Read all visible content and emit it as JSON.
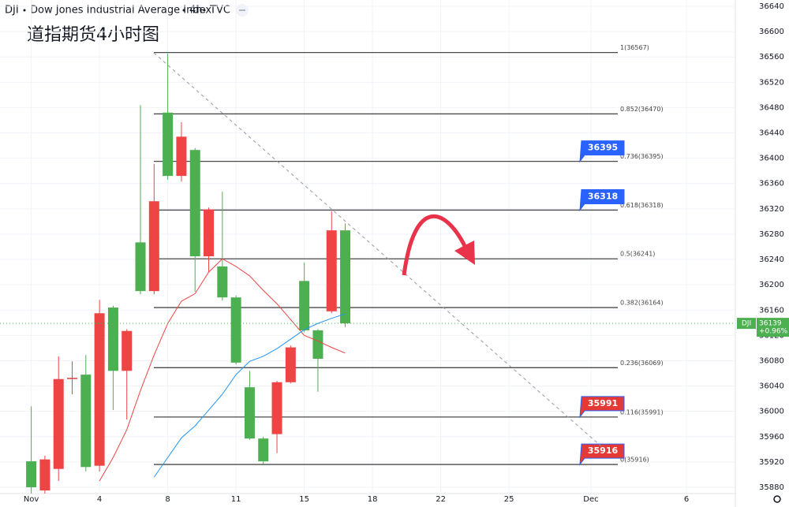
{
  "header": {
    "symbol": "DJI",
    "name": "Dow Jones Industrial Average Index",
    "interval": "4h",
    "source": "TVC"
  },
  "chart_data": {
    "type": "candlestick",
    "title": "道指期货4小时图",
    "x": [
      0,
      1,
      2,
      3,
      4,
      5,
      6,
      7,
      8,
      9,
      10,
      11,
      12,
      13,
      14,
      15,
      16,
      17,
      18,
      19,
      20,
      21,
      22,
      23
    ],
    "open": [
      35921,
      35875,
      35909,
      36051,
      36058,
      35914,
      36164,
      36064,
      36267,
      36190,
      36472,
      36372,
      36413,
      36245,
      36229,
      36180,
      36038,
      35957,
      35964,
      36046,
      36206,
      36128,
      36158,
      36286
    ],
    "high": [
      36008,
      35930,
      36087,
      36079,
      36089,
      36176,
      36167,
      36130,
      36484,
      36391,
      36565,
      36457,
      36416,
      36322,
      36347,
      36183,
      36064,
      35960,
      36048,
      36104,
      36235,
      36130,
      36316,
      36297
    ],
    "low": [
      35870,
      35870,
      35890,
      36027,
      35905,
      35905,
      36002,
      35987,
      36185,
      36185,
      36366,
      36363,
      36189,
      36220,
      36175,
      36074,
      35955,
      35917,
      35934,
      36044,
      36125,
      36031,
      36155,
      36133
    ],
    "close": [
      35880,
      35924,
      36051,
      36053,
      35912,
      36155,
      36064,
      36127,
      36190,
      36332,
      36372,
      36434,
      36245,
      36319,
      36180,
      36077,
      35957,
      35921,
      36046,
      36101,
      36128,
      36083,
      36286,
      36139
    ],
    "up_color": "#ef4444",
    "down_color": "#4caf50",
    "moving_averages": [
      {
        "color": "#ef4444",
        "values": [
          null,
          null,
          null,
          null,
          null,
          35890,
          35927,
          35971,
          36033,
          36089,
          36139,
          36174,
          36186,
          36220,
          36241,
          36229,
          36214,
          36191,
          36170,
          36145,
          36120,
          36111,
          36101,
          36092
        ]
      },
      {
        "color": "#2196f3",
        "values": [
          null,
          null,
          null,
          null,
          null,
          null,
          null,
          null,
          null,
          35896,
          35927,
          35958,
          35977,
          36002,
          36027,
          36058,
          36079,
          36087,
          36099,
          36114,
          36129,
          36139,
          36147,
          36154
        ]
      }
    ],
    "xlim": [
      -2,
      51
    ],
    "xticks": [
      {
        "value": 0,
        "label": "Nov"
      },
      {
        "value": 5,
        "label": "4"
      },
      {
        "value": 10,
        "label": "8"
      },
      {
        "value": 15,
        "label": "11"
      },
      {
        "value": 20,
        "label": "15"
      },
      {
        "value": 25,
        "label": "18"
      },
      {
        "value": 30,
        "label": "22"
      },
      {
        "value": 35,
        "label": "25"
      },
      {
        "value": 41,
        "label": "Dec"
      },
      {
        "value": 48,
        "label": "6"
      }
    ],
    "ylim": [
      35870,
      36650
    ],
    "yticks": [
      35880,
      35920,
      35960,
      36000,
      36040,
      36080,
      36120,
      36160,
      36200,
      36240,
      36280,
      36320,
      36360,
      36400,
      36440,
      36480,
      36520,
      36560,
      36600,
      36640
    ],
    "fib_levels": [
      {
        "value": 36567,
        "label": "1(36567)"
      },
      {
        "value": 36470,
        "label": "0.852(36470)"
      },
      {
        "value": 36395,
        "label": "0.736(36395)"
      },
      {
        "value": 36318,
        "label": "0.618(36318)"
      },
      {
        "value": 36241,
        "label": "0.5(36241)"
      },
      {
        "value": 36164,
        "label": "0.382(36164)"
      },
      {
        "value": 36069,
        "label": "0.236(36069)"
      },
      {
        "value": 35991,
        "label": "0.116(35991)"
      },
      {
        "value": 35916,
        "label": "0(35916)"
      }
    ],
    "price_tags": [
      {
        "value": 36395,
        "color": "#2962ff"
      },
      {
        "value": 36318,
        "color": "#2962ff"
      },
      {
        "value": 35991,
        "color": "#e53935"
      },
      {
        "value": 35916,
        "color": "#e53935"
      }
    ],
    "last_price": {
      "value": 36139,
      "change": "+0.96%",
      "color": "#4caf50"
    }
  }
}
